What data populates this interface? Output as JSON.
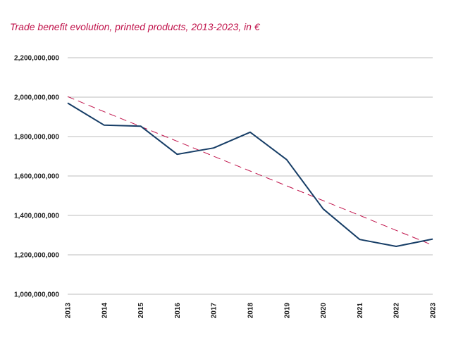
{
  "chart_data": {
    "type": "line",
    "title": "Trade benefit evolution, printed products, 2013-2023, in €",
    "xlabel": "",
    "ylabel": "",
    "categories": [
      "2013",
      "2014",
      "2015",
      "2016",
      "2017",
      "2018",
      "2019",
      "2020",
      "2021",
      "2022",
      "2023"
    ],
    "ylim": [
      1000000000,
      2200000000
    ],
    "yticks": [
      {
        "value": 1000000000,
        "label": "1,000,000,000"
      },
      {
        "value": 1200000000,
        "label": "1,200,000,000"
      },
      {
        "value": 1400000000,
        "label": "1,400,000,000"
      },
      {
        "value": 1600000000,
        "label": "1,600,000,000"
      },
      {
        "value": 1800000000,
        "label": "1,800,000,000"
      },
      {
        "value": 2000000000,
        "label": "2,000,000,000"
      },
      {
        "value": 2200000000,
        "label": "2,200,000,000"
      }
    ],
    "grid": true,
    "series": [
      {
        "values": [
          1970000000,
          1858000000,
          1853000000,
          1710000000,
          1742000000,
          1822000000,
          1683000000,
          1433000000,
          1278000000,
          1243000000,
          1280000000
        ],
        "color": "#163d66",
        "style": "solid"
      }
    ],
    "trendline": {
      "values": [
        2003000000,
        1926000000,
        1851000000,
        1776000000,
        1700000000,
        1625000000,
        1550000000,
        1475000000,
        1400000000,
        1324000000,
        1249000000
      ],
      "color": "#c0124a",
      "style": "dashed"
    }
  }
}
